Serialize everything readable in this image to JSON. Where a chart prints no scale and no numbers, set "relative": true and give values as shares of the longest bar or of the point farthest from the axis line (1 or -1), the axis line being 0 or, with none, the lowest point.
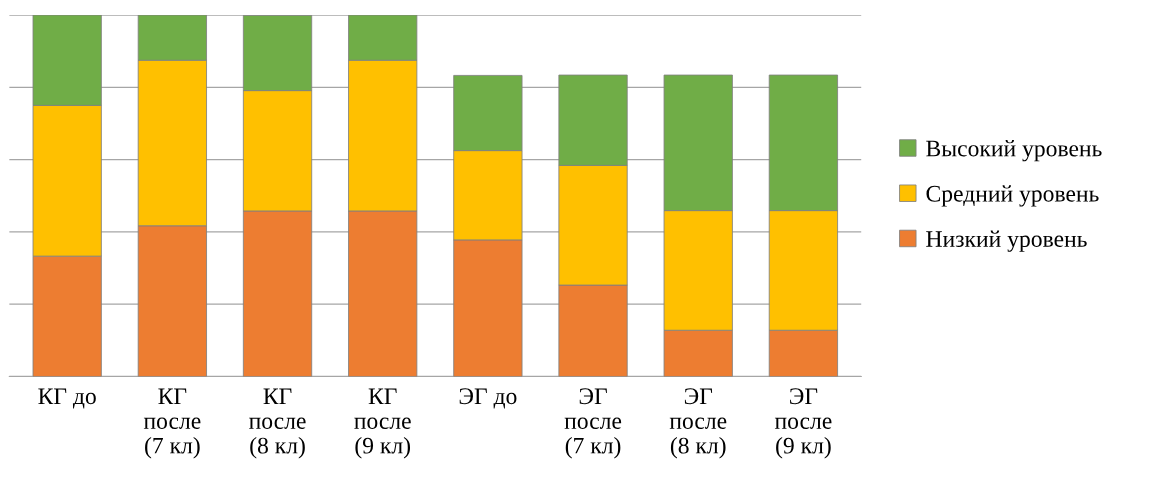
{
  "chart_data": {
    "type": "bar",
    "stacked": true,
    "relative": true,
    "grid": "y",
    "legend": "right",
    "categories": [
      "КГ до",
      "КГ\nпосле\n(7 кл)",
      "КГ\nпосле\n(8 кл)",
      "КГ\nпосле\n(9 кл)",
      "ЭГ до",
      "ЭГ\nпосле\n(7 кл)",
      "ЭГ\nпосле\n(8 кл)",
      "ЭГ\nпосле\n(9 кл)"
    ],
    "series": [
      {
        "name": "Низкий уровень",
        "color": "#ed7d31",
        "values": [
          0.333,
          0.417,
          0.458,
          0.458,
          0.378,
          0.253,
          0.128,
          0.128
        ]
      },
      {
        "name": "Средний уровень",
        "color": "#ffc000",
        "values": [
          0.417,
          0.458,
          0.333,
          0.417,
          0.247,
          0.331,
          0.331,
          0.331
        ]
      },
      {
        "name": "Высокий уровень",
        "color": "#70ad47",
        "values": [
          0.25,
          0.125,
          0.208,
          0.125,
          0.208,
          0.25,
          0.375,
          0.375
        ]
      }
    ]
  }
}
